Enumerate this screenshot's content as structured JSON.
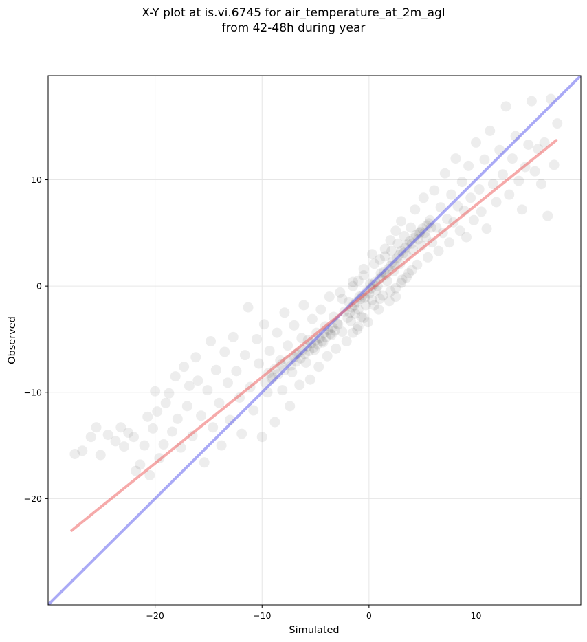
{
  "chart_data": {
    "type": "scatter",
    "title_line1": "X-Y plot at is.vi.6745 for air_temperature_at_2m_agl",
    "title_line2": "from 42-48h during year",
    "xlabel": "Simulated",
    "ylabel": "Observed",
    "xlim": [
      -30,
      19.8
    ],
    "ylim": [
      -30,
      19.8
    ],
    "x_ticks": [
      -20,
      -10,
      0,
      10
    ],
    "y_ticks": [
      -20,
      -10,
      0,
      10
    ],
    "x_tick_labels": [
      "−20",
      "−10",
      "0",
      "10"
    ],
    "y_tick_labels": [
      "−20",
      "−10",
      "0",
      "10"
    ],
    "grid": true,
    "point_color": "#000000",
    "point_alpha": 0.07,
    "reference_lines": [
      {
        "kind": "identity",
        "color": "#5555ee",
        "x": [
          -30,
          19.8
        ],
        "y": [
          -30,
          19.8
        ]
      },
      {
        "kind": "fit",
        "color": "#ee5555",
        "x": [
          -27.8,
          17.5
        ],
        "y": [
          -23.0,
          13.7
        ]
      }
    ],
    "points": [
      [
        -27.5,
        -15.8
      ],
      [
        -26.8,
        -15.5
      ],
      [
        -26.0,
        -14.2
      ],
      [
        -25.5,
        -13.3
      ],
      [
        -25.1,
        -15.9
      ],
      [
        -24.4,
        -14.0
      ],
      [
        -23.7,
        -14.6
      ],
      [
        -23.2,
        -13.3
      ],
      [
        -22.9,
        -15.1
      ],
      [
        -22.5,
        -13.8
      ],
      [
        -22.0,
        -14.2
      ],
      [
        -21.8,
        -17.4
      ],
      [
        -21.4,
        -16.8
      ],
      [
        -21.0,
        -15.0
      ],
      [
        -20.7,
        -12.3
      ],
      [
        -20.5,
        -17.8
      ],
      [
        -20.2,
        -13.4
      ],
      [
        -20.0,
        -9.9
      ],
      [
        -19.8,
        -11.8
      ],
      [
        -19.6,
        -16.2
      ],
      [
        -19.2,
        -14.9
      ],
      [
        -19.0,
        -11.0
      ],
      [
        -18.7,
        -10.1
      ],
      [
        -18.4,
        -13.7
      ],
      [
        -18.1,
        -8.5
      ],
      [
        -17.9,
        -12.5
      ],
      [
        -17.6,
        -15.2
      ],
      [
        -17.3,
        -7.6
      ],
      [
        -17.0,
        -11.3
      ],
      [
        -16.8,
        -9.4
      ],
      [
        -16.5,
        -14.1
      ],
      [
        -16.2,
        -6.7
      ],
      [
        -16.0,
        -8.9
      ],
      [
        -15.7,
        -12.2
      ],
      [
        -15.4,
        -16.6
      ],
      [
        -15.1,
        -9.8
      ],
      [
        -14.8,
        -5.2
      ],
      [
        -14.6,
        -13.3
      ],
      [
        -14.3,
        -7.9
      ],
      [
        -14.0,
        -11.0
      ],
      [
        -13.8,
        -15.0
      ],
      [
        -13.5,
        -6.2
      ],
      [
        -13.2,
        -9.1
      ],
      [
        -13.0,
        -12.6
      ],
      [
        -12.7,
        -4.8
      ],
      [
        -12.4,
        -8.0
      ],
      [
        -12.1,
        -10.5
      ],
      [
        -11.9,
        -13.9
      ],
      [
        -11.6,
        -6.5
      ],
      [
        -11.3,
        -2.0
      ],
      [
        -11.1,
        -9.5
      ],
      [
        -10.8,
        -11.7
      ],
      [
        -10.5,
        -5.0
      ],
      [
        -10.3,
        -7.3
      ],
      [
        -10.0,
        -14.2
      ],
      [
        -9.8,
        -3.6
      ],
      [
        -9.5,
        -10.0
      ],
      [
        -9.3,
        -6.1
      ],
      [
        -9.0,
        -8.6
      ],
      [
        -8.8,
        -12.8
      ],
      [
        -8.6,
        -4.4
      ],
      [
        -8.3,
        -7.0
      ],
      [
        -8.1,
        -9.8
      ],
      [
        -7.9,
        -2.5
      ],
      [
        -7.6,
        -5.6
      ],
      [
        -7.4,
        -11.3
      ],
      [
        -7.2,
        -8.1
      ],
      [
        -7.0,
        -3.7
      ],
      [
        -6.8,
        -6.4
      ],
      [
        -6.5,
        -9.3
      ],
      [
        -6.3,
        -4.9
      ],
      [
        -6.1,
        -1.8
      ],
      [
        -5.9,
        -7.2
      ],
      [
        -5.7,
        -5.1
      ],
      [
        -5.5,
        -8.8
      ],
      [
        -5.3,
        -3.1
      ],
      [
        -5.1,
        -6.0
      ],
      [
        -4.9,
        -4.4
      ],
      [
        -4.7,
        -7.6
      ],
      [
        -4.5,
        -2.2
      ],
      [
        -4.3,
        -5.3
      ],
      [
        -4.1,
        -3.8
      ],
      [
        -3.9,
        -6.6
      ],
      [
        -3.7,
        -1.0
      ],
      [
        -3.5,
        -4.6
      ],
      [
        -3.3,
        -2.9
      ],
      [
        -3.1,
        -5.9
      ],
      [
        -2.9,
        -3.6
      ],
      [
        -2.7,
        -0.6
      ],
      [
        -2.5,
        -4.3
      ],
      [
        -2.3,
        -2.4
      ],
      [
        -2.1,
        -5.2
      ],
      [
        -1.9,
        -1.5
      ],
      [
        -1.7,
        -3.3
      ],
      [
        -1.5,
        0.4
      ],
      [
        -1.3,
        -2.6
      ],
      [
        -1.1,
        -4.1
      ],
      [
        -0.9,
        -1.0
      ],
      [
        -0.7,
        -2.9
      ],
      [
        -0.5,
        1.0
      ],
      [
        -0.3,
        -1.8
      ],
      [
        -0.1,
        -3.4
      ],
      [
        0.1,
        0.2
      ],
      [
        0.3,
        -1.3
      ],
      [
        0.5,
        2.1
      ],
      [
        0.7,
        -0.4
      ],
      [
        0.9,
        -2.2
      ],
      [
        1.1,
        1.2
      ],
      [
        1.3,
        -0.9
      ],
      [
        1.5,
        2.8
      ],
      [
        1.7,
        0.5
      ],
      [
        1.9,
        -1.4
      ],
      [
        2.1,
        3.3
      ],
      [
        2.3,
        1.4
      ],
      [
        2.5,
        -0.2
      ],
      [
        2.7,
        4.0
      ],
      [
        2.9,
        2.1
      ],
      [
        3.1,
        0.6
      ],
      [
        3.3,
        4.7
      ],
      [
        3.5,
        2.9
      ],
      [
        3.7,
        1.2
      ],
      [
        3.9,
        5.5
      ],
      [
        4.1,
        3.4
      ],
      [
        4.3,
        7.2
      ],
      [
        4.5,
        2.0
      ],
      [
        4.7,
        5.0
      ],
      [
        4.9,
        3.8
      ],
      [
        5.1,
        8.3
      ],
      [
        5.3,
        4.6
      ],
      [
        5.5,
        2.7
      ],
      [
        5.7,
        6.2
      ],
      [
        5.9,
        4.1
      ],
      [
        6.1,
        9.0
      ],
      [
        6.3,
        5.5
      ],
      [
        6.5,
        3.3
      ],
      [
        6.7,
        7.4
      ],
      [
        6.9,
        5.0
      ],
      [
        7.1,
        10.6
      ],
      [
        7.3,
        6.3
      ],
      [
        7.5,
        4.1
      ],
      [
        7.7,
        8.6
      ],
      [
        7.9,
        6.0
      ],
      [
        8.1,
        12.0
      ],
      [
        8.3,
        7.5
      ],
      [
        8.5,
        5.2
      ],
      [
        8.7,
        9.8
      ],
      [
        8.9,
        7.1
      ],
      [
        9.1,
        4.6
      ],
      [
        9.3,
        11.3
      ],
      [
        9.5,
        8.3
      ],
      [
        9.8,
        6.2
      ],
      [
        10.0,
        13.5
      ],
      [
        10.3,
        9.1
      ],
      [
        10.5,
        7.0
      ],
      [
        10.8,
        11.9
      ],
      [
        11.0,
        5.4
      ],
      [
        11.3,
        14.6
      ],
      [
        11.6,
        9.6
      ],
      [
        11.9,
        7.9
      ],
      [
        12.2,
        12.8
      ],
      [
        12.5,
        10.5
      ],
      [
        12.8,
        16.9
      ],
      [
        13.1,
        8.6
      ],
      [
        13.4,
        12.0
      ],
      [
        13.7,
        14.1
      ],
      [
        14.0,
        9.9
      ],
      [
        14.3,
        7.2
      ],
      [
        14.6,
        11.2
      ],
      [
        14.9,
        13.3
      ],
      [
        15.2,
        17.4
      ],
      [
        15.5,
        10.8
      ],
      [
        15.8,
        12.9
      ],
      [
        16.1,
        9.6
      ],
      [
        16.4,
        13.5
      ],
      [
        16.7,
        6.6
      ],
      [
        17.0,
        17.6
      ],
      [
        17.3,
        11.4
      ],
      [
        17.6,
        15.3
      ],
      [
        -2.0,
        -3.0
      ],
      [
        -1.8,
        -2.5
      ],
      [
        -1.6,
        -2.0
      ],
      [
        -1.4,
        -1.8
      ],
      [
        -1.2,
        -1.5
      ],
      [
        -1.0,
        -2.2
      ],
      [
        -0.8,
        -1.2
      ],
      [
        -0.6,
        -0.9
      ],
      [
        -0.4,
        -1.1
      ],
      [
        -0.2,
        -0.5
      ],
      [
        0.0,
        -0.7
      ],
      [
        0.2,
        -0.2
      ],
      [
        0.4,
        0.1
      ],
      [
        0.6,
        0.4
      ],
      [
        0.8,
        0.0
      ],
      [
        1.0,
        0.7
      ],
      [
        1.2,
        0.9
      ],
      [
        1.4,
        1.3
      ],
      [
        1.6,
        1.1
      ],
      [
        1.8,
        1.6
      ],
      [
        2.0,
        1.9
      ],
      [
        2.2,
        2.3
      ],
      [
        2.4,
        2.0
      ],
      [
        2.6,
        2.6
      ],
      [
        2.8,
        2.9
      ],
      [
        3.0,
        3.3
      ],
      [
        3.2,
        3.1
      ],
      [
        3.4,
        3.6
      ],
      [
        3.6,
        3.9
      ],
      [
        3.8,
        4.2
      ],
      [
        4.0,
        4.0
      ],
      [
        4.2,
        4.5
      ],
      [
        4.4,
        4.8
      ],
      [
        4.6,
        4.4
      ],
      [
        4.8,
        5.1
      ],
      [
        5.0,
        5.4
      ],
      [
        5.2,
        5.0
      ],
      [
        5.4,
        5.7
      ],
      [
        5.6,
        5.9
      ],
      [
        5.8,
        5.5
      ],
      [
        -3.0,
        -3.5
      ],
      [
        -3.2,
        -4.2
      ],
      [
        -3.4,
        -3.9
      ],
      [
        -3.6,
        -4.5
      ],
      [
        -3.8,
        -4.1
      ],
      [
        -4.0,
        -4.8
      ],
      [
        -4.2,
        -4.4
      ],
      [
        -4.4,
        -5.2
      ],
      [
        -4.6,
        -4.9
      ],
      [
        -4.8,
        -5.5
      ],
      [
        -5.0,
        -5.1
      ],
      [
        -5.2,
        -5.8
      ],
      [
        -5.4,
        -5.4
      ],
      [
        -5.6,
        -6.1
      ],
      [
        -5.8,
        -5.7
      ],
      [
        -6.0,
        -6.4
      ],
      [
        -6.2,
        -6.0
      ],
      [
        -6.4,
        -6.8
      ],
      [
        -6.6,
        -6.3
      ],
      [
        -6.8,
        -7.1
      ],
      [
        -7.0,
        -6.7
      ],
      [
        -7.3,
        -7.5
      ],
      [
        -7.6,
        -7.0
      ],
      [
        -7.9,
        -7.9
      ],
      [
        -8.2,
        -7.4
      ],
      [
        -8.5,
        -8.3
      ],
      [
        -8.8,
        -7.8
      ],
      [
        -9.1,
        -8.7
      ],
      [
        -9.4,
        -8.2
      ],
      [
        -9.7,
        -9.1
      ],
      [
        1.0,
        2.5
      ],
      [
        1.5,
        3.5
      ],
      [
        2.0,
        4.3
      ],
      [
        2.5,
        5.2
      ],
      [
        3.0,
        6.1
      ],
      [
        -1.0,
        0.5
      ],
      [
        -0.5,
        1.6
      ],
      [
        0.3,
        3.0
      ],
      [
        -2.5,
        -1.2
      ],
      [
        -1.5,
        0.0
      ],
      [
        2.0,
        -0.5
      ],
      [
        2.5,
        -1.0
      ],
      [
        3.0,
        0.3
      ],
      [
        3.5,
        0.8
      ],
      [
        4.0,
        1.5
      ],
      [
        0.5,
        -1.8
      ],
      [
        1.0,
        -1.2
      ],
      [
        -0.5,
        -3.0
      ],
      [
        -1.0,
        -3.8
      ],
      [
        -1.5,
        -4.4
      ]
    ]
  }
}
